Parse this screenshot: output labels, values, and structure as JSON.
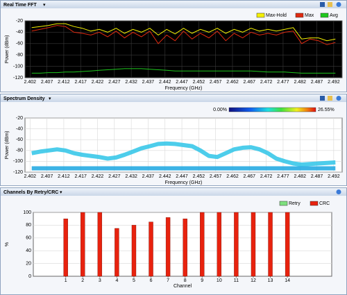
{
  "chart_data": [
    {
      "type": "line",
      "title": "Real Time FFT",
      "xlabel": "Frequency (GHz)",
      "ylabel": "Power (dBm)",
      "x": [
        2.4025,
        2.405,
        2.4075,
        2.41,
        2.4125,
        2.415,
        2.4175,
        2.42,
        2.4225,
        2.425,
        2.4275,
        2.43,
        2.4325,
        2.435,
        2.4375,
        2.44,
        2.4425,
        2.445,
        2.4475,
        2.45,
        2.4525,
        2.455,
        2.4575,
        2.46,
        2.4625,
        2.465,
        2.4675,
        2.47,
        2.4725,
        2.475,
        2.4775,
        2.48,
        2.4825,
        2.485,
        2.4875,
        2.49,
        2.4925
      ],
      "xlim": [
        2.4005,
        2.4945
      ],
      "xticks": [
        2.402,
        2.407,
        2.412,
        2.417,
        2.422,
        2.427,
        2.432,
        2.437,
        2.442,
        2.447,
        2.452,
        2.457,
        2.462,
        2.467,
        2.472,
        2.477,
        2.482,
        2.487,
        2.492
      ],
      "ylim": [
        -120,
        -20
      ],
      "yticks": [
        -20,
        -40,
        -60,
        -80,
        -100,
        -120
      ],
      "grid": true,
      "legend": "top-right",
      "background": "#000000",
      "series": [
        {
          "name": "Max-Hold",
          "color": "#f4f000",
          "values": [
            -32,
            -30,
            -28,
            -25,
            -25,
            -30,
            -33,
            -38,
            -35,
            -40,
            -33,
            -42,
            -35,
            -40,
            -33,
            -45,
            -35,
            -43,
            -33,
            -42,
            -35,
            -40,
            -33,
            -42,
            -35,
            -40,
            -33,
            -38,
            -35,
            -38,
            -35,
            -32,
            -52,
            -50,
            -50,
            -55,
            -52
          ]
        },
        {
          "name": "Max",
          "color": "#e02a10",
          "values": [
            -38,
            -35,
            -32,
            -28,
            -30,
            -40,
            -42,
            -45,
            -40,
            -48,
            -38,
            -50,
            -40,
            -48,
            -38,
            -60,
            -45,
            -55,
            -38,
            -52,
            -42,
            -50,
            -38,
            -55,
            -42,
            -50,
            -40,
            -45,
            -42,
            -45,
            -40,
            -38,
            -60,
            -52,
            -55,
            -62,
            -58
          ]
        },
        {
          "name": "Avg",
          "color": "#1ec81e",
          "values": [
            -112,
            -112,
            -111,
            -111,
            -110,
            -110,
            -109,
            -108,
            -107,
            -106,
            -105,
            -104,
            -104,
            -104,
            -105,
            -106,
            -107,
            -108,
            -108,
            -108,
            -108,
            -108,
            -108,
            -108,
            -108,
            -108,
            -108,
            -109,
            -110,
            -110,
            -110,
            -111,
            -112,
            -112,
            -112,
            -112,
            -112
          ]
        }
      ]
    },
    {
      "type": "density",
      "title": "Spectrum Density",
      "xlabel": "Frequency (GHz)",
      "ylabel": "Power (dBm)",
      "x": [
        2.4025,
        2.405,
        2.4075,
        2.41,
        2.4125,
        2.415,
        2.4175,
        2.42,
        2.4225,
        2.425,
        2.4275,
        2.43,
        2.4325,
        2.435,
        2.4375,
        2.44,
        2.4425,
        2.445,
        2.4475,
        2.45,
        2.4525,
        2.455,
        2.4575,
        2.46,
        2.4625,
        2.465,
        2.4675,
        2.47,
        2.4725,
        2.475,
        2.4775,
        2.48,
        2.4825,
        2.485,
        2.4875,
        2.49,
        2.4925
      ],
      "xlim": [
        2.4005,
        2.4945
      ],
      "xticks": [
        2.402,
        2.407,
        2.412,
        2.417,
        2.422,
        2.427,
        2.432,
        2.437,
        2.442,
        2.447,
        2.452,
        2.457,
        2.462,
        2.467,
        2.472,
        2.477,
        2.482,
        2.487,
        2.492
      ],
      "ylim": [
        -120,
        -20
      ],
      "yticks": [
        -20,
        -40,
        -60,
        -80,
        -100,
        -120
      ],
      "grid": true,
      "colorbar": [
        {
          "value": 0,
          "label": "0.00%"
        },
        {
          "value": 26.55,
          "label": "26.55%"
        }
      ],
      "series": [
        {
          "color": "#2ec4e8",
          "values": [
            -85,
            -82,
            -80,
            -78,
            -80,
            -85,
            -88,
            -90,
            -92,
            -95,
            -93,
            -88,
            -82,
            -76,
            -72,
            -68,
            -67,
            -68,
            -70,
            -72,
            -80,
            -90,
            -92,
            -85,
            -78,
            -75,
            -74,
            -78,
            -85,
            -95,
            -100,
            -104,
            -106,
            -105,
            -104,
            -103,
            -102
          ]
        },
        {
          "color": "#1aa6e0",
          "values": [
            -113,
            -113,
            -113,
            -113,
            -113,
            -113,
            -113,
            -113,
            -113,
            -113,
            -113,
            -113,
            -113,
            -113,
            -113,
            -113,
            -113,
            -113,
            -113,
            -113,
            -113,
            -113,
            -113,
            -113,
            -113,
            -113,
            -113,
            -113,
            -113,
            -113,
            -113,
            -113,
            -113,
            -113,
            -113,
            -113,
            -113
          ]
        }
      ]
    },
    {
      "type": "bar",
      "title": "Channels By Retry/CRC",
      "xlabel": "Channel",
      "ylabel": "%",
      "x": [
        1,
        2,
        3,
        4,
        5,
        6,
        7,
        8,
        9,
        10,
        11,
        12,
        13,
        14
      ],
      "xlim": [
        -0.9,
        16.6
      ],
      "xticks": [
        1,
        2,
        3,
        4,
        5,
        6,
        7,
        8,
        9,
        10,
        11,
        12,
        13,
        14
      ],
      "ylim": [
        0,
        100
      ],
      "yticks": [
        0,
        20,
        40,
        60,
        80,
        100
      ],
      "grid": true,
      "legend": "top-right",
      "background": "#ffffff",
      "series": [
        {
          "name": "Retry",
          "color": "#7ee07e",
          "values": [
            0,
            0,
            0,
            0,
            0,
            0,
            0,
            0,
            0,
            0,
            0,
            0,
            0,
            0
          ]
        },
        {
          "name": "CRC",
          "color": "#e8220e",
          "values": [
            90,
            100,
            100,
            75,
            80,
            85,
            92,
            90,
            100,
            100,
            100,
            100,
            100,
            100
          ]
        }
      ]
    }
  ]
}
